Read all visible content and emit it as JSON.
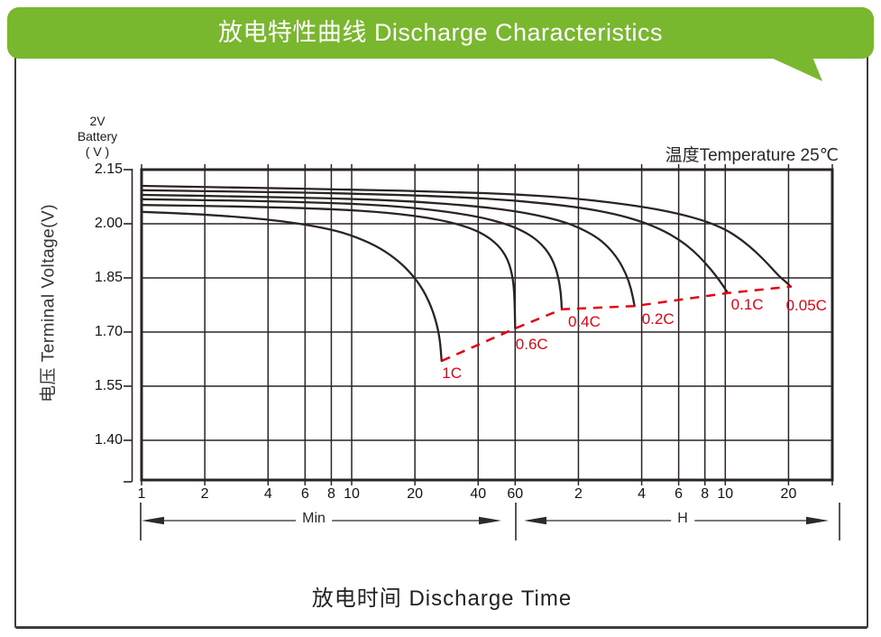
{
  "banner": {
    "title": "放电特性曲线  Discharge Characteristics"
  },
  "colors": {
    "banner_green": "#78b72e",
    "accent_red": "#e60012",
    "frame_border": "#403c3a",
    "curve_ink": "#2b2423",
    "arrow_gray": "#6b655f"
  },
  "chart_data": {
    "type": "line",
    "title": "放电特性曲线 Discharge Characteristics",
    "xlabel": "放电时间  Discharge Time",
    "ylabel": "电压 Terminal Voltage(V)",
    "annotation": "温度Temperature 25℃",
    "battery_label": [
      "2V",
      "Battery",
      "( V )"
    ],
    "x_axis": {
      "scale": "log",
      "unit": "time",
      "ticks": [
        {
          "minutes": 1,
          "label": "1"
        },
        {
          "minutes": 2,
          "label": "2"
        },
        {
          "minutes": 4,
          "label": "4"
        },
        {
          "minutes": 6,
          "label": "6"
        },
        {
          "minutes": 8,
          "label": "8"
        },
        {
          "minutes": 10,
          "label": "10"
        },
        {
          "minutes": 20,
          "label": "20"
        },
        {
          "minutes": 40,
          "label": "40"
        },
        {
          "minutes": 60,
          "label": "60"
        },
        {
          "minutes": 120,
          "label": "2"
        },
        {
          "minutes": 240,
          "label": "4"
        },
        {
          "minutes": 360,
          "label": "6"
        },
        {
          "minutes": 480,
          "label": "8"
        },
        {
          "minutes": 600,
          "label": "10"
        },
        {
          "minutes": 1200,
          "label": "20"
        }
      ],
      "regions": [
        {
          "label": "Min",
          "from_minutes": 1,
          "to_minutes": 60
        },
        {
          "label": "H",
          "from_minutes": 60,
          "to_minutes": 1800
        }
      ]
    },
    "y_axis": {
      "ticks": [
        {
          "value": 2.15,
          "label": "2.15"
        },
        {
          "value": 2.0,
          "label": "2.00"
        },
        {
          "value": 1.85,
          "label": "1.85"
        },
        {
          "value": 1.7,
          "label": "1.70"
        },
        {
          "value": 1.55,
          "label": "1.55"
        },
        {
          "value": 1.4,
          "label": "1.40"
        }
      ],
      "range_top": 2.15,
      "range_bottom": 1.29
    },
    "series": [
      {
        "name": "1C",
        "label_anchor": [
          30,
          1.585
        ],
        "points": [
          [
            1,
            2.033
          ],
          [
            2,
            2.026
          ],
          [
            4,
            2.012
          ],
          [
            6,
            1.998
          ],
          [
            8,
            1.984
          ],
          [
            10,
            1.968
          ],
          [
            13,
            1.94
          ],
          [
            16,
            1.906
          ],
          [
            19,
            1.866
          ],
          [
            22,
            1.816
          ],
          [
            24.5,
            1.756
          ],
          [
            26.2,
            1.69
          ],
          [
            26.8,
            1.62
          ]
        ]
      },
      {
        "name": "0.6C",
        "label_anchor": [
          72,
          1.665
        ],
        "points": [
          [
            1,
            2.052
          ],
          [
            3,
            2.048
          ],
          [
            8,
            2.041
          ],
          [
            15,
            2.031
          ],
          [
            25,
            2.014
          ],
          [
            35,
            1.993
          ],
          [
            43,
            1.97
          ],
          [
            50,
            1.94
          ],
          [
            55,
            1.905
          ],
          [
            58,
            1.862
          ],
          [
            59.5,
            1.81
          ],
          [
            60,
            1.71
          ]
        ]
      },
      {
        "name": "0.4C",
        "label_anchor": [
          128,
          1.728
        ],
        "points": [
          [
            1,
            2.068
          ],
          [
            3,
            2.064
          ],
          [
            8,
            2.058
          ],
          [
            15,
            2.05
          ],
          [
            25,
            2.038
          ],
          [
            40,
            2.02
          ],
          [
            55,
            1.999
          ],
          [
            68,
            1.975
          ],
          [
            78,
            1.95
          ],
          [
            86,
            1.922
          ],
          [
            92,
            1.89
          ],
          [
            96,
            1.855
          ],
          [
            99,
            1.81
          ],
          [
            100,
            1.763
          ]
        ]
      },
      {
        "name": "0.2C",
        "label_anchor": [
          287,
          1.735
        ],
        "points": [
          [
            1,
            2.08
          ],
          [
            3,
            2.076
          ],
          [
            10,
            2.069
          ],
          [
            20,
            2.062
          ],
          [
            40,
            2.048
          ],
          [
            60,
            2.035
          ],
          [
            80,
            2.021
          ],
          [
            100,
            2.007
          ],
          [
            120,
            1.99
          ],
          [
            145,
            1.965
          ],
          [
            165,
            1.938
          ],
          [
            185,
            1.903
          ],
          [
            202,
            1.862
          ],
          [
            214,
            1.82
          ],
          [
            222,
            1.772
          ]
        ]
      },
      {
        "name": "0.1C",
        "label_anchor": [
          763,
          1.776
        ],
        "points": [
          [
            1,
            2.093
          ],
          [
            3,
            2.089
          ],
          [
            10,
            2.084
          ],
          [
            30,
            2.075
          ],
          [
            60,
            2.065
          ],
          [
            120,
            2.046
          ],
          [
            180,
            2.027
          ],
          [
            240,
            2.006
          ],
          [
            300,
            1.983
          ],
          [
            360,
            1.957
          ],
          [
            420,
            1.927
          ],
          [
            480,
            1.893
          ],
          [
            540,
            1.857
          ],
          [
            580,
            1.832
          ],
          [
            617,
            1.808
          ]
        ]
      },
      {
        "name": "0.05C",
        "label_anchor": [
          1460,
          1.773
        ],
        "points": [
          [
            1,
            2.105
          ],
          [
            3,
            2.1
          ],
          [
            10,
            2.095
          ],
          [
            30,
            2.088
          ],
          [
            60,
            2.082
          ],
          [
            120,
            2.07
          ],
          [
            240,
            2.048
          ],
          [
            360,
            2.028
          ],
          [
            480,
            2.008
          ],
          [
            600,
            1.985
          ],
          [
            720,
            1.955
          ],
          [
            840,
            1.922
          ],
          [
            960,
            1.888
          ],
          [
            1080,
            1.855
          ],
          [
            1170,
            1.838
          ],
          [
            1230,
            1.826
          ]
        ]
      }
    ],
    "cutoff_connector": {
      "style": "dashed",
      "connects": "series endpoints"
    },
    "legend_position": "inline-labels",
    "grid": true
  }
}
